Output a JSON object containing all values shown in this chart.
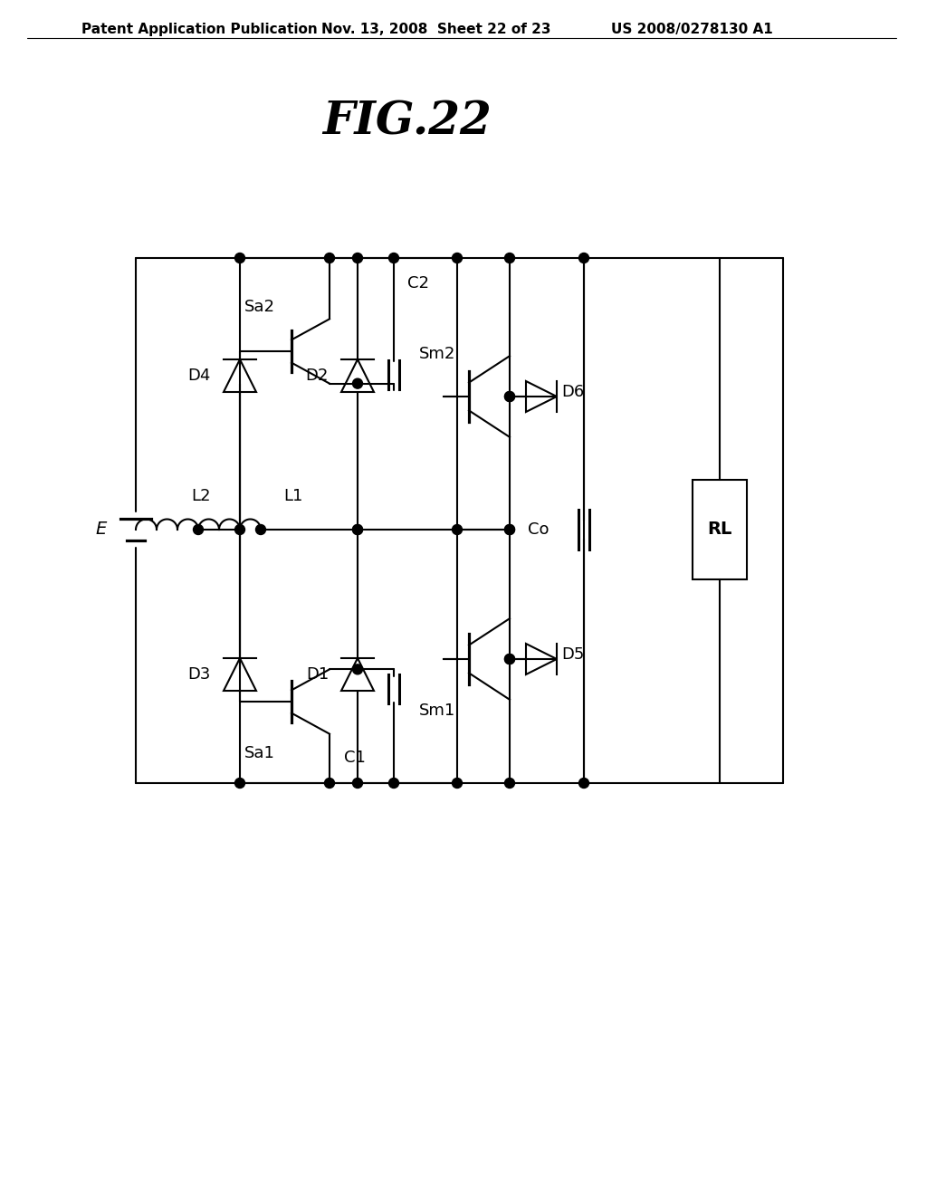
{
  "title": "FIG.22",
  "header_left": "Patent Application Publication",
  "header_mid": "Nov. 13, 2008  Sheet 22 of 23",
  "header_right": "US 2008/0278130 A1",
  "bg_color": "#ffffff",
  "line_color": "#000000",
  "title_fontsize": 36,
  "header_fontsize": 11,
  "label_fontsize": 13
}
